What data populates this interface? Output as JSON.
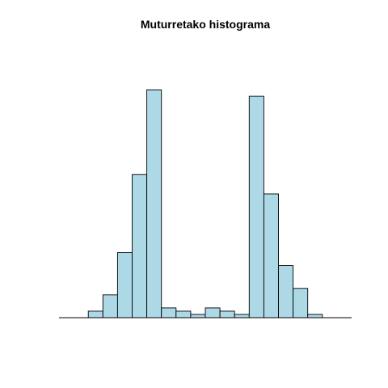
{
  "chart_data": {
    "type": "bar",
    "title": "Muturretako histograma",
    "bar_color": "#add8e6",
    "border_color": "#000000",
    "bins": [
      {
        "x0": 0,
        "x1": 1,
        "value": 2
      },
      {
        "x0": 1,
        "x1": 2,
        "value": 7
      },
      {
        "x0": 2,
        "x1": 3,
        "value": 20
      },
      {
        "x0": 3,
        "x1": 4,
        "value": 44
      },
      {
        "x0": 4,
        "x1": 5,
        "value": 70
      },
      {
        "x0": 5,
        "x1": 6,
        "value": 3
      },
      {
        "x0": 6,
        "x1": 7,
        "value": 2
      },
      {
        "x0": 7,
        "x1": 8,
        "value": 1
      },
      {
        "x0": 8,
        "x1": 9,
        "value": 3
      },
      {
        "x0": 9,
        "x1": 10,
        "value": 2
      },
      {
        "x0": 10,
        "x1": 11,
        "value": 1
      },
      {
        "x0": 11,
        "x1": 12,
        "value": 68
      },
      {
        "x0": 12,
        "x1": 13,
        "value": 38
      },
      {
        "x0": 13,
        "x1": 14,
        "value": 16
      },
      {
        "x0": 14,
        "x1": 15,
        "value": 9
      },
      {
        "x0": 15,
        "x1": 16,
        "value": 1
      }
    ],
    "xlim": [
      -2,
      18
    ],
    "ylim": [
      0,
      72
    ],
    "axes_shown": false,
    "grid": false
  }
}
